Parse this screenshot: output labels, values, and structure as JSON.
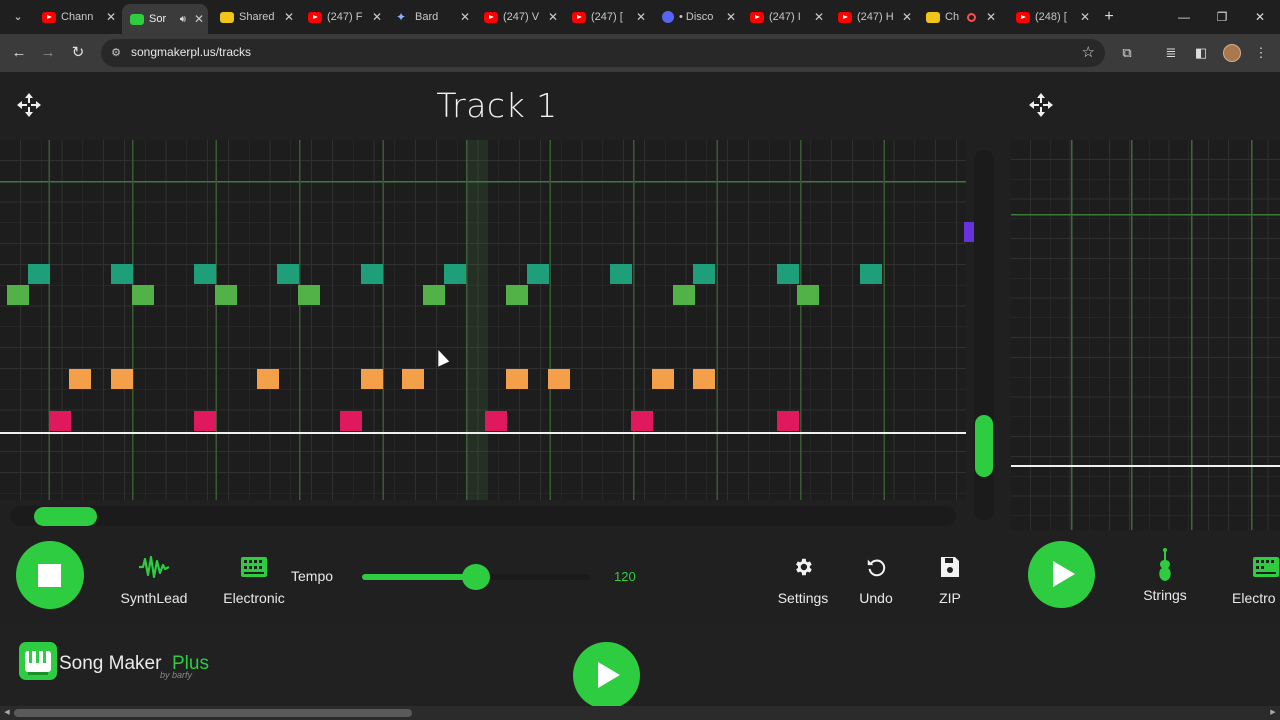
{
  "browser": {
    "tabs": [
      {
        "title": "Chann",
        "icon": "youtube-icon",
        "active": false
      },
      {
        "title": "Sor",
        "icon": "songmaker-icon",
        "active": true,
        "audio": true
      },
      {
        "title": "Shared",
        "icon": "shared-icon",
        "active": false
      },
      {
        "title": "(247) F",
        "icon": "youtube-icon",
        "active": false
      },
      {
        "title": "Bard",
        "icon": "bard-icon",
        "active": false
      },
      {
        "title": "(247) V",
        "icon": "youtube-icon",
        "active": false
      },
      {
        "title": "(247) [",
        "icon": "youtube-icon",
        "active": false
      },
      {
        "title": "• Disco",
        "icon": "discord-icon",
        "active": false
      },
      {
        "title": "(247) I",
        "icon": "youtube-icon",
        "active": false
      },
      {
        "title": "(247) H",
        "icon": "youtube-icon",
        "active": false
      },
      {
        "title": "Ch",
        "icon": "channel-icon",
        "active": false,
        "recording": true
      },
      {
        "title": "(248) [",
        "icon": "youtube-icon",
        "active": false
      }
    ],
    "url": "songmakerpl.us/tracks"
  },
  "track": {
    "title": "Track 1"
  },
  "controls": {
    "instrument": "SynthLead",
    "percussion": "Electronic",
    "tempo_label": "Tempo",
    "tempo_value": "120",
    "tempo_fraction": 0.5,
    "settings_label": "Settings",
    "undo_label": "Undo",
    "zip_label": "ZIP"
  },
  "side_track": {
    "instrument": "Strings",
    "percussion": "Electro"
  },
  "brand": {
    "name_part1": "Song Maker",
    "name_part2": "Plus",
    "byline": "by barfy"
  },
  "colors": {
    "accent": "#2ecc40",
    "note_teal": "#1f9e7a",
    "note_green": "#52b248",
    "note_orange": "#f4a04a",
    "note_pink": "#e0195f",
    "note_purple": "#6633dd"
  },
  "notes": {
    "teal": [
      1,
      5,
      9,
      13,
      17,
      21,
      25,
      29,
      33,
      37,
      41
    ],
    "green": [
      0,
      6,
      10,
      14,
      20,
      24,
      32,
      38
    ],
    "orange": [
      3,
      5,
      12,
      17,
      19,
      24,
      26,
      31,
      33
    ],
    "pink": [
      2,
      9,
      16,
      23,
      30,
      37
    ],
    "purple": [
      46
    ]
  }
}
